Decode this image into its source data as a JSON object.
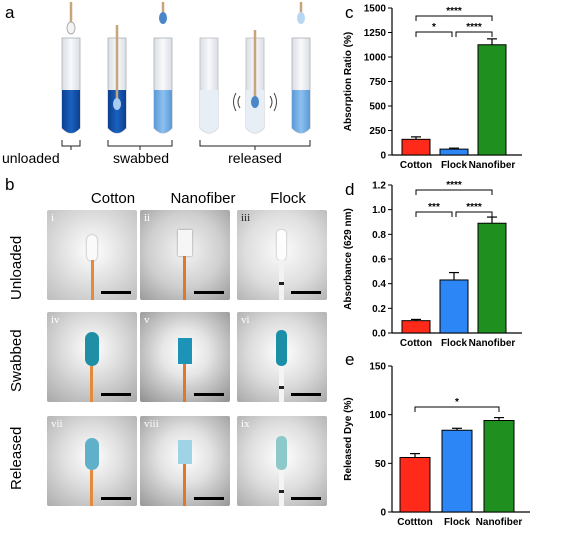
{
  "panel_labels": {
    "a": "a",
    "b": "b",
    "c": "c",
    "d": "d",
    "e": "e"
  },
  "panel_a": {
    "labels": [
      "unloaded",
      "swabbed",
      "released"
    ]
  },
  "panel_b": {
    "columns": [
      "Cotton",
      "Nanofiber",
      "Flock"
    ],
    "rows": [
      "Unloaded",
      "Swabbed",
      "Released"
    ],
    "numerals": [
      "i",
      "ii",
      "iii",
      "iv",
      "v",
      "vi",
      "vii",
      "viii",
      "ix"
    ]
  },
  "colors": {
    "cotton": "#ff2a1a",
    "flock": "#2c86f5",
    "nanofiber": "#1f8f1f"
  },
  "chart_data": [
    {
      "id": "c",
      "type": "bar",
      "categories": [
        "Cotton",
        "Flock",
        "Nanofiber"
      ],
      "values": [
        160,
        60,
        1125
      ],
      "errors": [
        25,
        10,
        60
      ],
      "ylabel": "Absorption Ratio (%)",
      "ylim": [
        0,
        1500
      ],
      "yticks": [
        "0",
        "250",
        "500",
        "750",
        "1000",
        "1250",
        "1500"
      ],
      "significance": [
        "****",
        "*",
        "****"
      ]
    },
    {
      "id": "d",
      "type": "bar",
      "categories": [
        "Cotton",
        "Flock",
        "Nanofiber"
      ],
      "values": [
        0.1,
        0.43,
        0.89
      ],
      "errors": [
        0.01,
        0.06,
        0.05
      ],
      "ylabel": "Absorbance (629 nm)",
      "ylim": [
        0,
        1.2
      ],
      "yticks": [
        "0.0",
        "0.2",
        "0.4",
        "0.6",
        "0.8",
        "1.0",
        "1.2"
      ],
      "significance": [
        "****",
        "***",
        "****"
      ]
    },
    {
      "id": "e",
      "type": "bar",
      "categories": [
        "Cottton",
        "Flock",
        "Nanofiber"
      ],
      "values": [
        56,
        84,
        94
      ],
      "errors": [
        4,
        2,
        3
      ],
      "ylabel": "Released Dye (%)",
      "ylim": [
        0,
        150
      ],
      "yticks": [
        "0",
        "50",
        "100",
        "150"
      ],
      "significance": [
        "*"
      ]
    }
  ]
}
